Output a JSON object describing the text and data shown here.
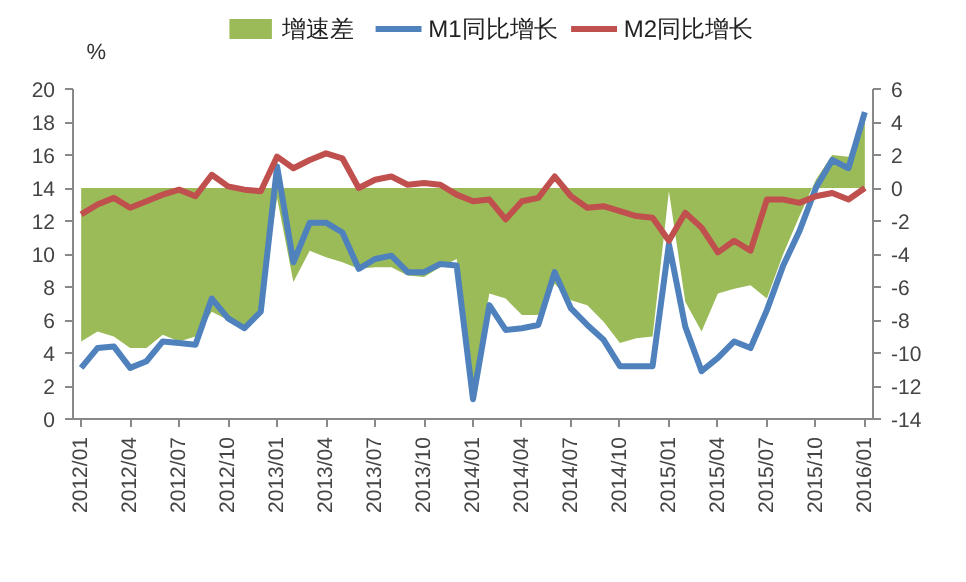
{
  "chart_data": {
    "type": "line",
    "ylabel": "%",
    "legend": "top",
    "categories": [
      "2012/01",
      null,
      null,
      "2012/04",
      null,
      null,
      "2012/07",
      null,
      null,
      "2012/10",
      null,
      null,
      "2013/01",
      null,
      null,
      "2013/04",
      null,
      null,
      "2013/07",
      null,
      null,
      "2013/10",
      null,
      null,
      "2014/01",
      null,
      null,
      "2014/04",
      null,
      null,
      "2014/07",
      null,
      null,
      "2014/10",
      null,
      null,
      "2015/01",
      null,
      null,
      "2015/04",
      null,
      null,
      "2015/07",
      null,
      null,
      "2015/10",
      null,
      null,
      "2016/01"
    ],
    "ylim": [
      0,
      20
    ],
    "yticks": [
      0,
      2,
      4,
      6,
      8,
      10,
      12,
      14,
      16,
      18,
      20
    ],
    "y2lim": [
      -14,
      6
    ],
    "y2ticks": [
      -14,
      -12,
      -10,
      -8,
      -6,
      -4,
      -2,
      0,
      2,
      4,
      6
    ],
    "grid": false,
    "series": [
      {
        "name": "增速差",
        "type": "area",
        "axis": "y2",
        "color": "#9bbb59",
        "values": [
          -9.3,
          -8.7,
          -9.0,
          -9.7,
          -9.7,
          -8.9,
          -9.3,
          -9.0,
          -7.5,
          -8.0,
          -8.4,
          -7.3,
          -0.6,
          -5.7,
          -3.8,
          -4.2,
          -4.5,
          -4.9,
          -4.8,
          -4.8,
          -5.3,
          -5.4,
          -4.8,
          -4.3,
          -12.0,
          -6.4,
          -6.7,
          -7.7,
          -7.7,
          -5.8,
          -6.8,
          -7.1,
          -8.1,
          -9.4,
          -9.1,
          -9.0,
          -0.2,
          -6.9,
          -8.7,
          -6.4,
          -6.1,
          -5.9,
          -6.7,
          -4.0,
          -1.7,
          0.5,
          2.0,
          1.9,
          4.6
        ]
      },
      {
        "name": "M1同比增长",
        "color": "#4f81bd",
        "values": [
          3.1,
          4.3,
          4.4,
          3.1,
          3.5,
          4.7,
          4.6,
          4.5,
          7.3,
          6.1,
          5.5,
          6.5,
          15.3,
          9.5,
          11.9,
          11.9,
          11.3,
          9.1,
          9.7,
          9.9,
          8.9,
          8.9,
          9.4,
          9.3,
          1.2,
          6.9,
          5.4,
          5.5,
          5.7,
          8.9,
          6.7,
          5.7,
          4.8,
          3.2,
          3.2,
          3.2,
          10.6,
          5.6,
          2.9,
          3.7,
          4.7,
          4.3,
          6.6,
          9.3,
          11.4,
          14.0,
          15.7,
          15.2,
          18.6
        ]
      },
      {
        "name": "M2同比增长",
        "color": "#c0504d",
        "values": [
          12.4,
          13.0,
          13.4,
          12.8,
          13.2,
          13.6,
          13.9,
          13.5,
          14.8,
          14.1,
          13.9,
          13.8,
          15.9,
          15.2,
          15.7,
          16.1,
          15.8,
          14.0,
          14.5,
          14.7,
          14.2,
          14.3,
          14.2,
          13.6,
          13.2,
          13.3,
          12.1,
          13.2,
          13.4,
          14.7,
          13.5,
          12.8,
          12.9,
          12.6,
          12.3,
          12.2,
          10.8,
          12.5,
          11.6,
          10.1,
          10.8,
          10.2,
          13.3,
          13.3,
          13.1,
          13.5,
          13.7,
          13.3,
          14.0
        ]
      }
    ]
  }
}
